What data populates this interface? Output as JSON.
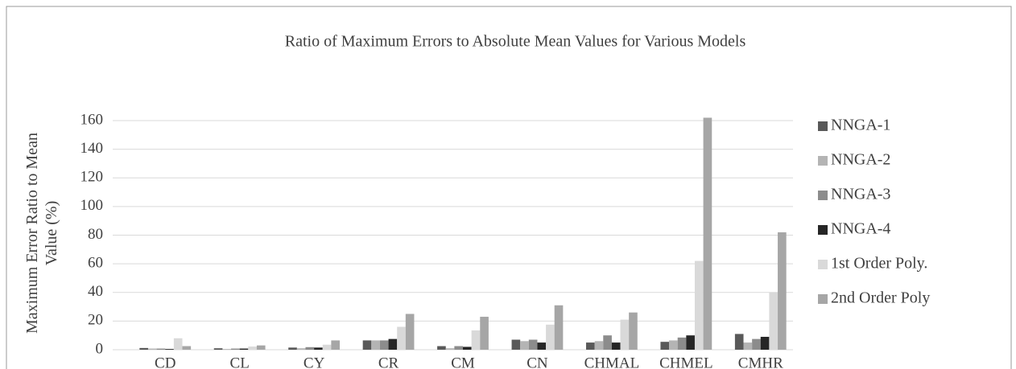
{
  "chart_data": {
    "type": "bar",
    "title": "Ratio of Maximum Errors to Absolute Mean Values for Various Models",
    "y_label": "Maximum Error Ratio to Mean Value (%)",
    "categories": [
      "CD",
      "CL",
      "CY",
      "CR",
      "CM",
      "CN",
      "CHMAL",
      "CHMEL",
      "CMHR"
    ],
    "series": [
      {
        "name": "NNGA-1",
        "color": "#595959",
        "values": [
          1.2,
          1.0,
          1.5,
          6.5,
          2.5,
          7,
          5,
          5.5,
          11
        ]
      },
      {
        "name": "NNGA-2",
        "color": "#b4b4b4",
        "values": [
          0.8,
          0.5,
          1,
          6.5,
          1,
          6,
          6,
          6.5,
          5
        ]
      },
      {
        "name": "NNGA-3",
        "color": "#8c8c8c",
        "values": [
          0.8,
          0.8,
          1.8,
          6.5,
          2.5,
          7,
          10,
          8.5,
          7.5
        ]
      },
      {
        "name": "NNGA-4",
        "color": "#262626",
        "values": [
          0.5,
          0.8,
          1.5,
          7.5,
          2,
          5,
          5,
          10,
          9
        ]
      },
      {
        "name": "1st Order Poly.",
        "color": "#d9d9d9",
        "values": [
          8,
          2.2,
          3.5,
          16,
          13.5,
          17.5,
          21,
          62,
          40
        ]
      },
      {
        "name": "2nd Order Poly",
        "color": "#a6a6a6",
        "values": [
          2.5,
          3,
          6.5,
          25,
          23,
          31,
          26,
          162,
          82
        ]
      }
    ],
    "ylim": [
      0,
      160
    ],
    "yticks": [
      0,
      20,
      40,
      60,
      80,
      100,
      120,
      140,
      160
    ],
    "grid": true,
    "legend": "right"
  }
}
